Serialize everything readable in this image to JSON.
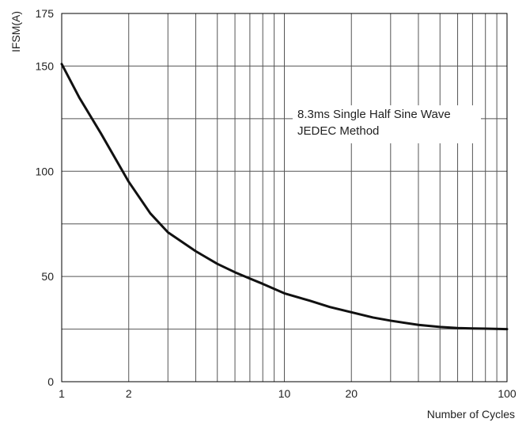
{
  "chart_data": {
    "type": "line",
    "title": "",
    "xlabel": "Number of Cycles",
    "ylabel": "IFSM(A)",
    "x_scale": "log",
    "xlim": [
      1,
      100
    ],
    "ylim": [
      0,
      175
    ],
    "x_ticks": [
      {
        "value": 1,
        "label": "1"
      },
      {
        "value": 2,
        "label": "2"
      },
      {
        "value": 10,
        "label": "10"
      },
      {
        "value": 20,
        "label": "20"
      },
      {
        "value": 100,
        "label": "100"
      }
    ],
    "y_ticks": [
      {
        "value": 0,
        "label": "0"
      },
      {
        "value": 50,
        "label": "50"
      },
      {
        "value": 100,
        "label": "100"
      },
      {
        "value": 150,
        "label": "150"
      },
      {
        "value": 175,
        "label": "175"
      }
    ],
    "x_gridlines": [
      2,
      3,
      4,
      5,
      6,
      7,
      8,
      9,
      10,
      20,
      30,
      40,
      50,
      60,
      70,
      80,
      90
    ],
    "y_gridlines": [
      25,
      50,
      75,
      100,
      125,
      150
    ],
    "grid": true,
    "series": [
      {
        "x": [
          1,
          1.2,
          1.5,
          2,
          2.5,
          3,
          4,
          5,
          6,
          7,
          8,
          10,
          13,
          16,
          20,
          25,
          30,
          40,
          50,
          60,
          70,
          80,
          100
        ],
        "values": [
          151,
          135,
          118,
          95,
          80,
          71,
          62,
          56,
          52,
          49,
          46.5,
          42,
          38.5,
          35.5,
          33,
          30.5,
          29,
          27,
          26,
          25.5,
          25.3,
          25.2,
          25
        ],
        "color": "#111111"
      }
    ],
    "annotations": [
      {
        "text": "8.3ms Single Half Sine Wave"
      },
      {
        "text": "JEDEC Method"
      }
    ]
  }
}
